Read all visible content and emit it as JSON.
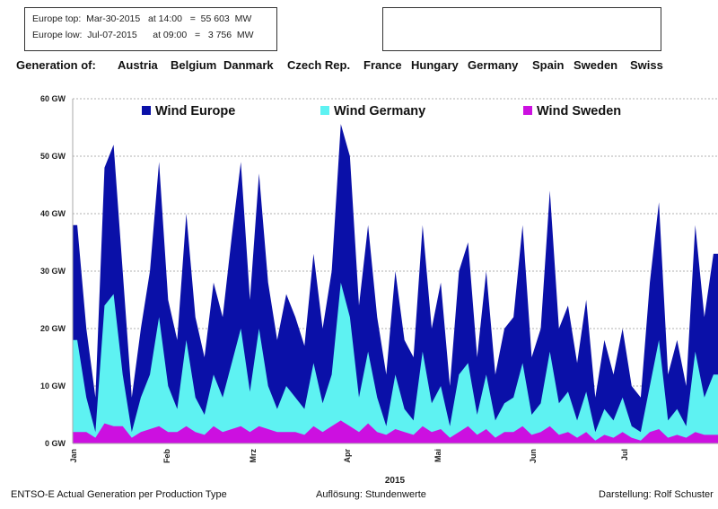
{
  "info_box": {
    "line1": "Europe top:  Mar-30-2015   at 14:00   =  55 603  MW",
    "line2": "Europe low:  Jul-07-2015      at 09:00   =   3 756  MW"
  },
  "generation": {
    "label": "Generation of:",
    "countries": [
      "Austria",
      "Belgium",
      "Danmark",
      "Czech Rep.",
      "France",
      "Hungary",
      "Germany",
      "Spain",
      "Sweden",
      "Swiss"
    ]
  },
  "footer": {
    "left": "ENTSO-E   Actual Generation per Production Type",
    "center": "Auflösung:  Stundenwerte",
    "right": "Darstellung: Rolf Schuster"
  },
  "chart_data": {
    "type": "area",
    "xlabel": "2015",
    "ylim": [
      0,
      60
    ],
    "yticks": [
      "0 GW",
      "10 GW",
      "20 GW",
      "30 GW",
      "40 GW",
      "50 GW",
      "60 GW"
    ],
    "xticks": [
      "Jan",
      "Feb",
      "Mrz",
      "Apr",
      "Mai",
      "Jun",
      "Jul"
    ],
    "grid": true,
    "legend": "top",
    "x": [
      "Jan-01",
      "Jan-04",
      "Jan-07",
      "Jan-10",
      "Jan-13",
      "Jan-16",
      "Jan-19",
      "Jan-22",
      "Jan-25",
      "Jan-28",
      "Jan-31",
      "Feb-03",
      "Feb-06",
      "Feb-09",
      "Feb-12",
      "Feb-15",
      "Feb-18",
      "Feb-21",
      "Feb-24",
      "Feb-27",
      "Mar-02",
      "Mar-05",
      "Mar-08",
      "Mar-11",
      "Mar-14",
      "Mar-17",
      "Mar-20",
      "Mar-23",
      "Mar-26",
      "Mar-29",
      "Apr-01",
      "Apr-04",
      "Apr-07",
      "Apr-10",
      "Apr-13",
      "Apr-16",
      "Apr-19",
      "Apr-22",
      "Apr-25",
      "Apr-28",
      "May-01",
      "May-04",
      "May-07",
      "May-10",
      "May-13",
      "May-16",
      "May-19",
      "May-22",
      "May-25",
      "May-28",
      "May-31",
      "Jun-03",
      "Jun-06",
      "Jun-09",
      "Jun-12",
      "Jun-15",
      "Jun-18",
      "Jun-21",
      "Jun-24",
      "Jun-27",
      "Jun-30",
      "Jul-03",
      "Jul-06",
      "Jul-09",
      "Jul-12",
      "Jul-15",
      "Jul-18",
      "Jul-21",
      "Jul-24",
      "Jul-27",
      "Jul-30"
    ],
    "series": [
      {
        "name": "Wind Europe",
        "color": "#0a10a8",
        "values": [
          38,
          20,
          8,
          48,
          52,
          30,
          8,
          20,
          30,
          49,
          25,
          18,
          40,
          22,
          15,
          28,
          22,
          36,
          49,
          25,
          47,
          28,
          18,
          26,
          22,
          17,
          33,
          20,
          30,
          55.6,
          50,
          24,
          38,
          22,
          12,
          30,
          18,
          15,
          38,
          20,
          28,
          10,
          30,
          35,
          15,
          30,
          12,
          20,
          22,
          38,
          15,
          20,
          44,
          20,
          24,
          14,
          25,
          8,
          18,
          12,
          20,
          10,
          8,
          28,
          42,
          12,
          18,
          10,
          38,
          22,
          33
        ]
      },
      {
        "name": "Wind Germany",
        "color": "#5ef2f2",
        "values": [
          18,
          8,
          2,
          24,
          26,
          12,
          2,
          8,
          12,
          22,
          10,
          6,
          18,
          8,
          5,
          12,
          8,
          14,
          20,
          9,
          20,
          10,
          6,
          10,
          8,
          6,
          14,
          7,
          12,
          28,
          22,
          8,
          16,
          8,
          3,
          12,
          6,
          4,
          16,
          7,
          10,
          3,
          12,
          14,
          5,
          12,
          4,
          7,
          8,
          14,
          5,
          7,
          16,
          7,
          9,
          4,
          9,
          2,
          6,
          4,
          8,
          3,
          2,
          10,
          18,
          4,
          6,
          3,
          16,
          8,
          12
        ]
      },
      {
        "name": "Wind Sweden",
        "color": "#cc10e0",
        "values": [
          2,
          2,
          1,
          3.5,
          3,
          3,
          1,
          2,
          2.5,
          3,
          2,
          2,
          3,
          2,
          1.5,
          3,
          2,
          2.5,
          3,
          2,
          3,
          2.5,
          2,
          2,
          2,
          1.5,
          3,
          2,
          3,
          4,
          3,
          2,
          3.5,
          2,
          1.5,
          2.5,
          2,
          1.5,
          3,
          2,
          2.5,
          1,
          2,
          3,
          1.5,
          2.5,
          1,
          2,
          2,
          3,
          1.5,
          2,
          3,
          1.5,
          2,
          1,
          2,
          0.5,
          1.5,
          1,
          2,
          1,
          0.5,
          2,
          2.5,
          1,
          1.5,
          1,
          2,
          1.5,
          1.5
        ]
      }
    ]
  }
}
